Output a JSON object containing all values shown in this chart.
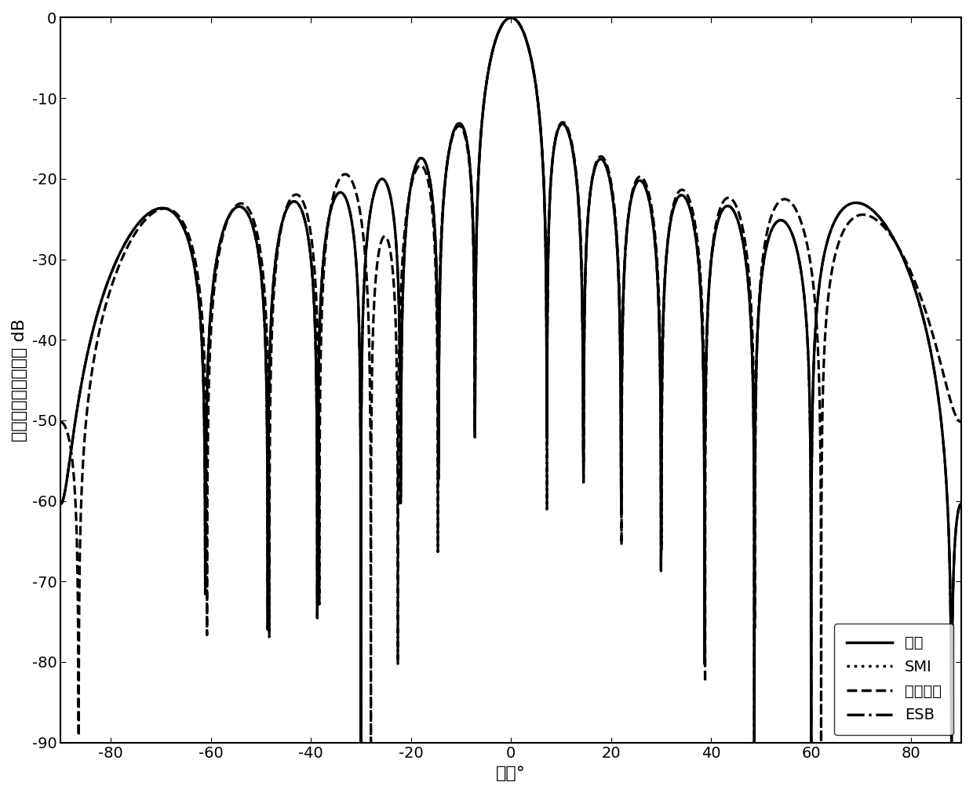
{
  "title": "",
  "xlabel": "角度°",
  "ylabel": "归一化输出功率增益 dB",
  "xlim": [
    -90,
    90
  ],
  "ylim": [
    -90,
    0
  ],
  "xticks": [
    -80,
    -60,
    -40,
    -20,
    0,
    20,
    40,
    60,
    80
  ],
  "yticks": [
    0,
    -10,
    -20,
    -30,
    -40,
    -50,
    -60,
    -70,
    -80,
    -90
  ],
  "legend_labels": [
    "最优",
    "SMI",
    "所提算法",
    "ESB"
  ],
  "N": 16,
  "d_over_lambda": 0.5,
  "theta0": 0,
  "interf_angles": [
    -30,
    60
  ],
  "snr_db": 20,
  "inr_db": 40,
  "background_color": "#ffffff",
  "line_color": "#000000",
  "lw_solid": 2.2,
  "lw_dotted": 2.2,
  "lw_dashed": 2.2,
  "lw_dashdot": 2.2
}
